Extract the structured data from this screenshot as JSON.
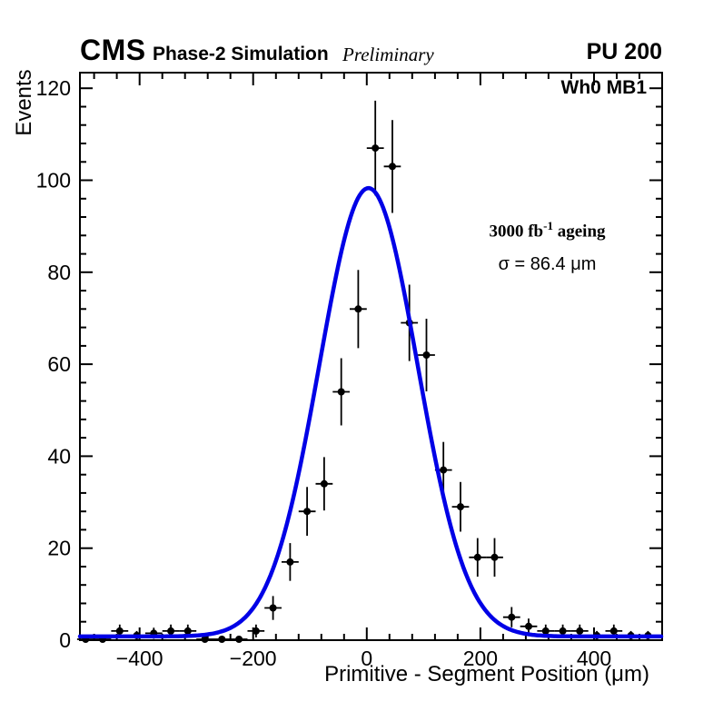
{
  "header": {
    "experiment": "CMS",
    "label": "Phase-2 Simulation",
    "sublabel": "Preliminary",
    "pileup": "PU 200"
  },
  "plot": {
    "chamber": "Wh0 MB1",
    "ageing_prefix": "3000 fb",
    "ageing_sup": "-1",
    "ageing_suffix": " ageing",
    "sigma_label": "σ = 86.4 μm"
  },
  "chart_data": {
    "type": "scatter",
    "title": "",
    "xlabel": "Primitive - Segment Position (μm)",
    "ylabel": "Events",
    "xlim": [
      -505,
      520
    ],
    "ylim": [
      0,
      123.4
    ],
    "xticks": [
      -400,
      -200,
      0,
      200,
      400
    ],
    "yticks": [
      0,
      20,
      40,
      60,
      80,
      100,
      120
    ],
    "x_minor_step": 40,
    "y_minor_step": 4,
    "grid": false,
    "legend": "none",
    "marker": {
      "shape": "circle",
      "color": "#000000",
      "radius": 4
    },
    "points": [
      {
        "x": -495,
        "y": 0.2,
        "ey": 0.4,
        "ex": 15
      },
      {
        "x": -465,
        "y": 0.2,
        "ey": 0.4,
        "ex": 15
      },
      {
        "x": -435,
        "y": 2,
        "ey": 1.4,
        "ex": 15
      },
      {
        "x": -405,
        "y": 1,
        "ey": 1.0,
        "ex": 15
      },
      {
        "x": -375,
        "y": 1.5,
        "ey": 1.2,
        "ex": 15
      },
      {
        "x": -345,
        "y": 2,
        "ey": 1.4,
        "ex": 15
      },
      {
        "x": -315,
        "y": 2,
        "ey": 1.4,
        "ex": 15
      },
      {
        "x": -285,
        "y": 0.2,
        "ey": 0.4,
        "ex": 15
      },
      {
        "x": -255,
        "y": 0.2,
        "ey": 0.4,
        "ex": 15
      },
      {
        "x": -225,
        "y": 0.2,
        "ey": 0.4,
        "ex": 15
      },
      {
        "x": -195,
        "y": 2,
        "ey": 1.4,
        "ex": 15
      },
      {
        "x": -165,
        "y": 7,
        "ey": 2.6,
        "ex": 15
      },
      {
        "x": -135,
        "y": 17,
        "ey": 4.1,
        "ex": 15
      },
      {
        "x": -105,
        "y": 28,
        "ey": 5.3,
        "ex": 15
      },
      {
        "x": -75,
        "y": 34,
        "ey": 5.8,
        "ex": 15
      },
      {
        "x": -45,
        "y": 54,
        "ey": 7.3,
        "ex": 15
      },
      {
        "x": -15,
        "y": 72,
        "ey": 8.5,
        "ex": 15
      },
      {
        "x": 15,
        "y": 107,
        "ey": 10.3,
        "ex": 15
      },
      {
        "x": 45,
        "y": 103,
        "ey": 10.1,
        "ex": 15
      },
      {
        "x": 75,
        "y": 69,
        "ey": 8.3,
        "ex": 15
      },
      {
        "x": 105,
        "y": 62,
        "ey": 7.9,
        "ex": 15
      },
      {
        "x": 135,
        "y": 37,
        "ey": 6.1,
        "ex": 15
      },
      {
        "x": 165,
        "y": 29,
        "ey": 5.4,
        "ex": 15
      },
      {
        "x": 195,
        "y": 18,
        "ey": 4.2,
        "ex": 15
      },
      {
        "x": 225,
        "y": 18,
        "ey": 4.2,
        "ex": 15
      },
      {
        "x": 255,
        "y": 5,
        "ey": 2.2,
        "ex": 15
      },
      {
        "x": 285,
        "y": 3,
        "ey": 1.7,
        "ex": 15
      },
      {
        "x": 315,
        "y": 2,
        "ey": 1.4,
        "ex": 15
      },
      {
        "x": 345,
        "y": 2,
        "ey": 1.4,
        "ex": 15
      },
      {
        "x": 375,
        "y": 2,
        "ey": 1.4,
        "ex": 15
      },
      {
        "x": 405,
        "y": 1,
        "ey": 1.0,
        "ex": 15
      },
      {
        "x": 435,
        "y": 2,
        "ey": 1.4,
        "ex": 15
      },
      {
        "x": 465,
        "y": 1,
        "ey": 1.0,
        "ex": 15
      },
      {
        "x": 495,
        "y": 1,
        "ey": 1.0,
        "ex": 15
      }
    ],
    "fit": {
      "type": "gaussian",
      "amplitude": 97.5,
      "mean": 3,
      "sigma": 86.4,
      "baseline": 0.8,
      "color": "#0000e6",
      "width": 4.5
    }
  }
}
